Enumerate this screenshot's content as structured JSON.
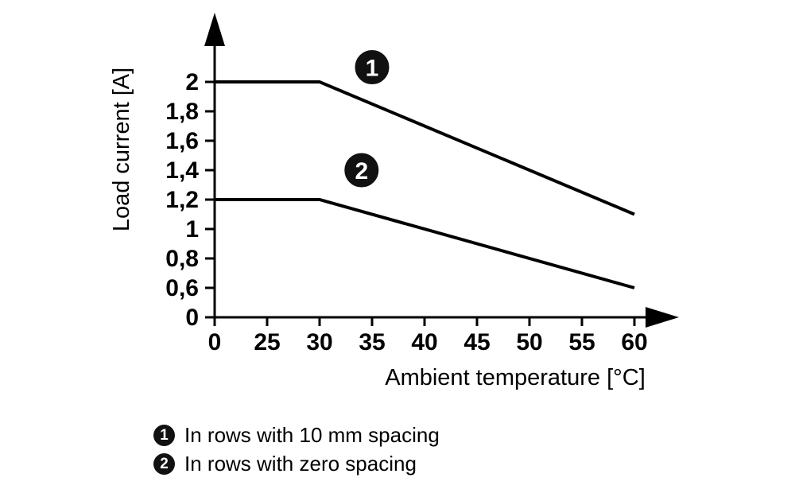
{
  "chart_data": {
    "type": "line",
    "xlabel": "Ambient temperature [°C]",
    "ylabel": "Load current [A]",
    "x_tick_labels": [
      "0",
      "25",
      "30",
      "35",
      "40",
      "45",
      "50",
      "55",
      "60"
    ],
    "x_tick_values": [
      0,
      25,
      30,
      35,
      40,
      45,
      50,
      55,
      60
    ],
    "y_tick_labels": [
      "0",
      "0,6",
      "0,8",
      "1",
      "1,2",
      "1,4",
      "1,6",
      "1,8",
      "2"
    ],
    "y_tick_values": [
      0,
      0.6,
      0.8,
      1,
      1.2,
      1.4,
      1.6,
      1.8,
      2
    ],
    "series": [
      {
        "marker": "1",
        "name": "In rows with 10 mm spacing",
        "points": [
          [
            0,
            2
          ],
          [
            30,
            2
          ],
          [
            60,
            1.1
          ]
        ]
      },
      {
        "marker": "2",
        "name": "In rows with zero spacing",
        "points": [
          [
            0,
            1.2
          ],
          [
            30,
            1.2
          ],
          [
            60,
            0.6
          ]
        ]
      }
    ],
    "annotations": [
      {
        "label": "1",
        "x": 35,
        "y": 2.1
      },
      {
        "label": "2",
        "x": 34,
        "y": 1.4
      }
    ],
    "legend_position": "below"
  },
  "legend": {
    "items": [
      {
        "badge": "1",
        "label": "In rows with 10 mm spacing"
      },
      {
        "badge": "2",
        "label": "In rows with zero spacing"
      }
    ]
  },
  "colors": {
    "line": "#000000",
    "axis": "#000000",
    "badge_bg": "#111111",
    "badge_text": "#ffffff",
    "background": "#ffffff"
  }
}
